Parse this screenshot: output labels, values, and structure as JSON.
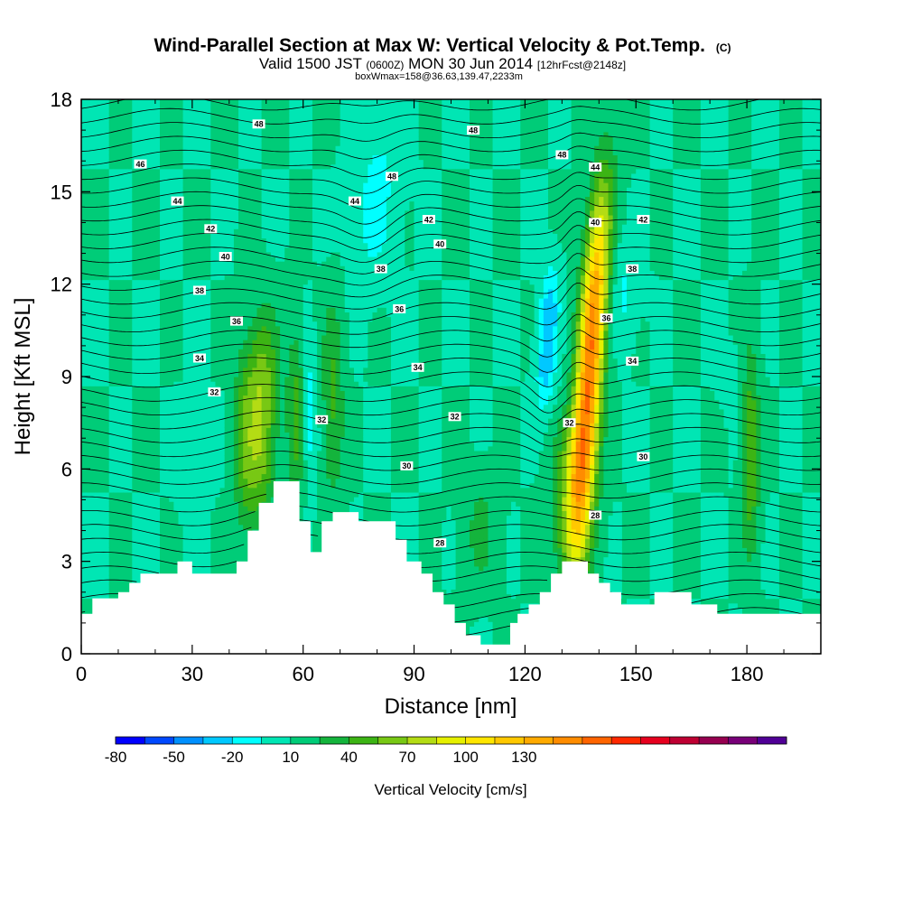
{
  "header": {
    "title": "Wind-Parallel Section at Max W: Vertical Velocity & Pot.Temp.",
    "copyright": "(C)",
    "valid_main_a": "Valid 1500 JST",
    "valid_small_a": "(0600Z)",
    "valid_main_b": "MON 30 Jun 2014",
    "valid_small_b": "[12hrFcst@2148z]",
    "boxwmax": "boxWmax=158@36.63,139.47,2233m"
  },
  "chart_data": {
    "type": "heatmap",
    "title": "Wind-Parallel Section at Max W: Vertical Velocity & Pot.Temp.",
    "xlabel": "Distance [nm]",
    "ylabel": "Height [Kft MSL]",
    "xlim": [
      0,
      200
    ],
    "ylim": [
      0,
      18
    ],
    "x_ticks": [
      0,
      30,
      60,
      90,
      120,
      150,
      180
    ],
    "y_ticks": [
      0,
      3,
      6,
      9,
      12,
      15,
      18
    ],
    "x_tick_labels": [
      "0",
      "30",
      "60",
      "90",
      "120",
      "150",
      "180"
    ],
    "y_tick_labels": [
      "0",
      "3",
      "6",
      "9",
      "12",
      "15",
      "18"
    ],
    "grid": false,
    "colorbar": {
      "label": "Vertical Velocity [cm/s]",
      "min": -80,
      "step": 15,
      "colors": [
        "#0000ff",
        "#0048ff",
        "#0090ff",
        "#00c8ff",
        "#00ffff",
        "#00e6b4",
        "#00cc78",
        "#14b43c",
        "#3cb414",
        "#78c814",
        "#b4dc14",
        "#e6f000",
        "#ffe600",
        "#ffc800",
        "#ffaa00",
        "#ff8c00",
        "#ff6400",
        "#ff2800",
        "#e6001e",
        "#be0032",
        "#960050",
        "#780078",
        "#500096"
      ],
      "tick_values": [
        -80,
        -50,
        -20,
        10,
        40,
        70,
        100,
        130
      ],
      "tick_labels": [
        "-80",
        "-50",
        "-20",
        "10",
        "40",
        "70",
        "100",
        "130"
      ]
    },
    "background_w": 10,
    "w_features": [
      {
        "x": 48,
        "base": 4.5,
        "top": 11.0,
        "peak": 60,
        "halfwidth": 4.2,
        "lean": 0.2
      },
      {
        "x": 68,
        "base": 5.0,
        "top": 11.5,
        "peak": 32,
        "halfwidth": 3.0,
        "lean": 0.0
      },
      {
        "x": 58,
        "base": 5.0,
        "top": 10.5,
        "peak": 35,
        "halfwidth": 2.3,
        "lean": 0.0
      },
      {
        "x": 44,
        "base": 4.0,
        "top": 10.0,
        "peak": 28,
        "halfwidth": 3.0,
        "lean": 0.0
      },
      {
        "x": 134,
        "base": 3.5,
        "top": 15.0,
        "peak": 150,
        "halfwidth": 3.6,
        "lean": 0.6
      },
      {
        "x": 133,
        "base": 2.5,
        "top": 7.5,
        "peak": 45,
        "halfwidth": 5.5,
        "lean": 0.0
      },
      {
        "x": 181,
        "base": 3.0,
        "top": 10.0,
        "peak": 40,
        "halfwidth": 2.4,
        "lean": 0.0
      },
      {
        "x": 78,
        "base": 12.0,
        "top": 17.5,
        "peak": -20,
        "halfwidth": 6.0,
        "lean": 0.6
      },
      {
        "x": 125,
        "base": 8.0,
        "top": 12.5,
        "peak": -45,
        "halfwidth": 2.6,
        "lean": 0.5
      },
      {
        "x": 62,
        "base": 5.5,
        "top": 10.0,
        "peak": -22,
        "halfwidth": 2.0,
        "lean": 0.0
      },
      {
        "x": 146,
        "base": 10.0,
        "top": 13.5,
        "peak": -18,
        "halfwidth": 4.0,
        "lean": 0.0
      },
      {
        "x": 30,
        "base": 4.5,
        "top": 8.0,
        "peak": -8,
        "halfwidth": 4.0,
        "lean": 0.0
      },
      {
        "x": 176,
        "base": 8.0,
        "top": 10.0,
        "peak": -10,
        "halfwidth": 3.0,
        "lean": 0.0
      },
      {
        "x": 108,
        "base": 2.0,
        "top": 6.0,
        "peak": 18,
        "halfwidth": 5.0,
        "lean": 0.0
      }
    ],
    "terrain": {
      "x": [
        0,
        3,
        10,
        13,
        16,
        26,
        30,
        36,
        39,
        42,
        45,
        48,
        52,
        56,
        59,
        60,
        62,
        65,
        68,
        72,
        75,
        78,
        85,
        88,
        92,
        95,
        98,
        101,
        104,
        108,
        113,
        116,
        118,
        121,
        124,
        127,
        130,
        137,
        140,
        143,
        146,
        149,
        155,
        162,
        165,
        172,
        180,
        190,
        200
      ],
      "height": [
        1.3,
        1.8,
        2.0,
        2.3,
        2.6,
        3.0,
        2.6,
        2.6,
        2.6,
        3.0,
        4.0,
        4.9,
        5.6,
        5.6,
        4.3,
        4.3,
        3.3,
        4.3,
        4.6,
        4.6,
        4.3,
        4.3,
        3.7,
        3.0,
        2.6,
        2.0,
        1.6,
        1.0,
        0.6,
        0.3,
        0.3,
        1.0,
        1.3,
        1.6,
        2.0,
        2.6,
        3.0,
        2.6,
        2.3,
        2.0,
        1.6,
        1.6,
        2.0,
        2.0,
        1.6,
        1.3,
        1.3,
        1.3,
        1.3
      ]
    },
    "theta": {
      "label_levels": [
        28,
        30,
        32,
        34,
        36,
        38,
        40,
        42,
        44,
        46,
        48
      ],
      "labels": [
        {
          "text": "48",
          "x": 48,
          "y": 17.2
        },
        {
          "text": "48",
          "x": 106,
          "y": 17.0
        },
        {
          "text": "48",
          "x": 130,
          "y": 16.2
        },
        {
          "text": "46",
          "x": 16,
          "y": 15.9
        },
        {
          "text": "48",
          "x": 84,
          "y": 15.5
        },
        {
          "text": "44",
          "x": 139,
          "y": 15.8
        },
        {
          "text": "44",
          "x": 26,
          "y": 14.7
        },
        {
          "text": "44",
          "x": 74,
          "y": 14.7
        },
        {
          "text": "42",
          "x": 35,
          "y": 13.8
        },
        {
          "text": "42",
          "x": 94,
          "y": 14.1
        },
        {
          "text": "40",
          "x": 139,
          "y": 14.0
        },
        {
          "text": "42",
          "x": 152,
          "y": 14.1
        },
        {
          "text": "40",
          "x": 39,
          "y": 12.9
        },
        {
          "text": "40",
          "x": 97,
          "y": 13.3
        },
        {
          "text": "38",
          "x": 81,
          "y": 12.5
        },
        {
          "text": "38",
          "x": 149,
          "y": 12.5
        },
        {
          "text": "38",
          "x": 32,
          "y": 11.8
        },
        {
          "text": "36",
          "x": 86,
          "y": 11.2
        },
        {
          "text": "36",
          "x": 42,
          "y": 10.8
        },
        {
          "text": "36",
          "x": 142,
          "y": 10.9
        },
        {
          "text": "34",
          "x": 32,
          "y": 9.6
        },
        {
          "text": "34",
          "x": 91,
          "y": 9.3
        },
        {
          "text": "34",
          "x": 149,
          "y": 9.5
        },
        {
          "text": "32",
          "x": 36,
          "y": 8.5
        },
        {
          "text": "32",
          "x": 65,
          "y": 7.6
        },
        {
          "text": "32",
          "x": 101,
          "y": 7.7
        },
        {
          "text": "32",
          "x": 132,
          "y": 7.5
        },
        {
          "text": "30",
          "x": 88,
          "y": 6.1
        },
        {
          "text": "30",
          "x": 152,
          "y": 6.4
        },
        {
          "text": "28",
          "x": 139,
          "y": 4.5
        },
        {
          "text": "28",
          "x": 97,
          "y": 3.6
        }
      ]
    }
  }
}
